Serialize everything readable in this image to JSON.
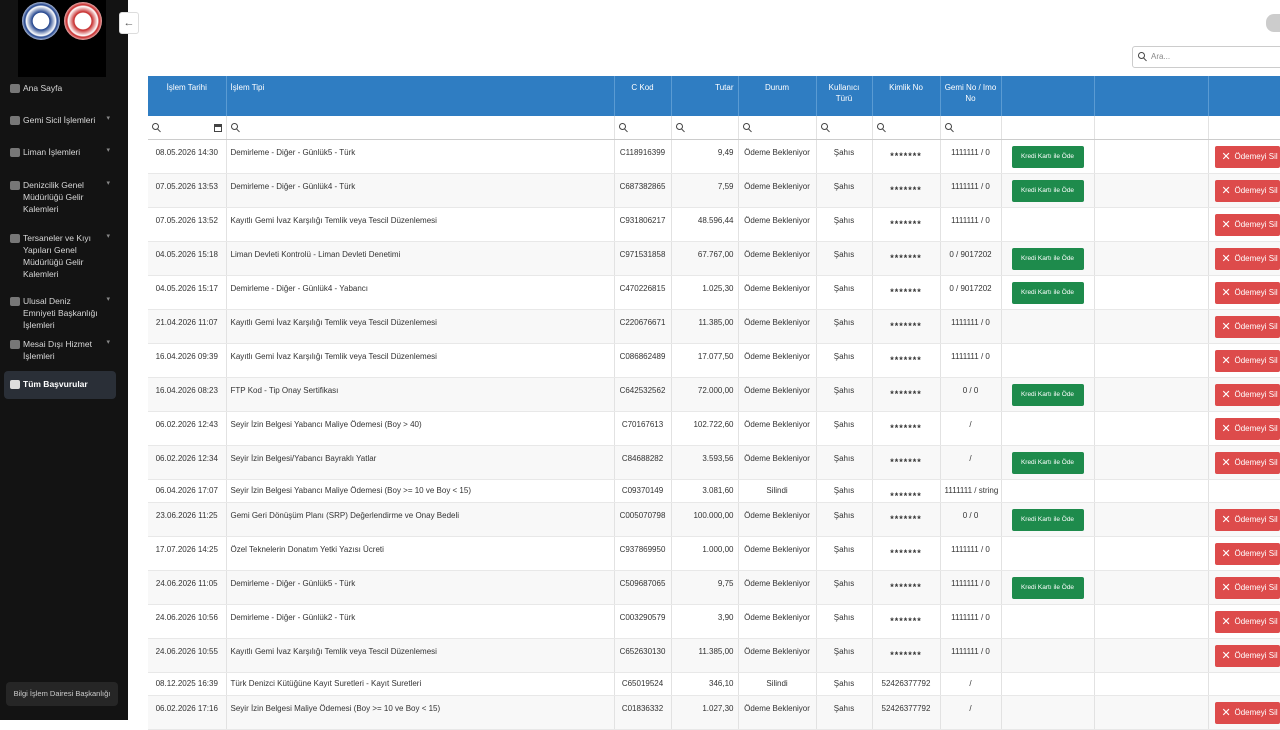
{
  "sidebar": {
    "menu": [
      {
        "label": "Ana Sayfa"
      },
      {
        "label": "Gemi Sicil İşlemleri"
      },
      {
        "label": "Liman İşlemleri"
      },
      {
        "label": "Denizcilik Genel Müdürlüğü Gelir Kalemleri"
      },
      {
        "label": "Tersaneler ve Kıyı Yapıları Genel Müdürlüğü Gelir Kalemleri"
      },
      {
        "label": "Ulusal Deniz Emniyeti Başkanlığı İşlemleri"
      },
      {
        "label": "Mesai Dışı Hizmet İşlemleri"
      },
      {
        "label": "Tüm Başvurular"
      }
    ],
    "footer": "Bilgi İşlem Dairesi Başkanlığı"
  },
  "search": {
    "placeholder": "Ara..."
  },
  "table": {
    "columns": [
      "İşlem Tarihi",
      "İşlem Tipi",
      "C Kod",
      "Tutar",
      "Durum",
      "Kullanıcı Türü",
      "Kimlik No",
      "Gemi No / Imo No"
    ],
    "actions": {
      "pay": "Kredi Kartı ile Öde",
      "delete": "Ödemeyi Sil"
    },
    "rows": [
      {
        "cells": [
          "08.05.2026 14:30",
          "Demirleme - Diğer - Günlük5 - Türk",
          "C118916399",
          "9,49",
          "Ödeme Bekleniyor",
          "Şahıs",
          "*******",
          "1111111 / 0"
        ],
        "pay": true,
        "delete": true
      },
      {
        "cells": [
          "07.05.2026 13:53",
          "Demirleme - Diğer - Günlük4 - Türk",
          "C687382865",
          "7,59",
          "Ödeme Bekleniyor",
          "Şahıs",
          "*******",
          "1111111 / 0"
        ],
        "pay": true,
        "delete": true
      },
      {
        "cells": [
          "07.05.2026 13:52",
          "Kayıtlı Gemi İvaz Karşılığı Temlik veya Tescil Düzenlemesi",
          "C931806217",
          "48.596,44",
          "Ödeme Bekleniyor",
          "Şahıs",
          "*******",
          "1111111 / 0"
        ],
        "pay": false,
        "delete": true
      },
      {
        "cells": [
          "04.05.2026 15:18",
          "Liman Devleti Kontrolü - Liman Devleti Denetimi",
          "C971531858",
          "67.767,00",
          "Ödeme Bekleniyor",
          "Şahıs",
          "*******",
          "0 / 9017202"
        ],
        "pay": true,
        "delete": true
      },
      {
        "cells": [
          "04.05.2026 15:17",
          "Demirleme - Diğer - Günlük4 - Yabancı",
          "C470226815",
          "1.025,30",
          "Ödeme Bekleniyor",
          "Şahıs",
          "*******",
          "0 / 9017202"
        ],
        "pay": true,
        "delete": true
      },
      {
        "cells": [
          "21.04.2026 11:07",
          "Kayıtlı Gemi İvaz Karşılığı Temlik veya Tescil Düzenlemesi",
          "C220676671",
          "11.385,00",
          "Ödeme Bekleniyor",
          "Şahıs",
          "*******",
          "1111111 / 0"
        ],
        "pay": false,
        "delete": true
      },
      {
        "cells": [
          "16.04.2026 09:39",
          "Kayıtlı Gemi İvaz Karşılığı Temlik veya Tescil Düzenlemesi",
          "C086862489",
          "17.077,50",
          "Ödeme Bekleniyor",
          "Şahıs",
          "*******",
          "1111111 / 0"
        ],
        "pay": false,
        "delete": true
      },
      {
        "cells": [
          "16.04.2026 08:23",
          "FTP Kod - Tip Onay Sertifikası",
          "C642532562",
          "72.000,00",
          "Ödeme Bekleniyor",
          "Şahıs",
          "*******",
          "0 / 0"
        ],
        "pay": true,
        "delete": true
      },
      {
        "cells": [
          "06.02.2026 12:43",
          "Seyir İzin Belgesi Yabancı Maliye Ödemesi (Boy > 40)",
          "C70167613",
          "102.722,60",
          "Ödeme Bekleniyor",
          "Şahıs",
          "*******",
          "/"
        ],
        "pay": false,
        "delete": true
      },
      {
        "cells": [
          "06.02.2026 12:34",
          "Seyir İzin Belgesi/Yabancı Bayraklı Yatlar",
          "C84688282",
          "3.593,56",
          "Ödeme Bekleniyor",
          "Şahıs",
          "*******",
          "/"
        ],
        "pay": true,
        "delete": true
      },
      {
        "cells": [
          "06.04.2026 17:07",
          "Seyir İzin Belgesi Yabancı Maliye Ödemesi (Boy >= 10 ve Boy < 15)",
          "C09370149",
          "3.081,60",
          "Silindi",
          "Şahıs",
          "*******",
          "1111111 / string"
        ],
        "pay": false,
        "delete": false
      },
      {
        "cells": [
          "23.06.2026 11:25",
          "Gemi Geri Dönüşüm Planı (SRP) Değerlendirme ve Onay Bedeli",
          "C005070798",
          "100.000,00",
          "Ödeme Bekleniyor",
          "Şahıs",
          "*******",
          "0 / 0"
        ],
        "pay": true,
        "delete": true
      },
      {
        "cells": [
          "17.07.2026 14:25",
          "Özel Teknelerin Donatım Yetki Yazısı Ücreti",
          "C937869950",
          "1.000,00",
          "Ödeme Bekleniyor",
          "Şahıs",
          "*******",
          "1111111 / 0"
        ],
        "pay": false,
        "delete": true
      },
      {
        "cells": [
          "24.06.2026 11:05",
          "Demirleme - Diğer - Günlük5 - Türk",
          "C509687065",
          "9,75",
          "Ödeme Bekleniyor",
          "Şahıs",
          "*******",
          "1111111 / 0"
        ],
        "pay": true,
        "delete": true
      },
      {
        "cells": [
          "24.06.2026 10:56",
          "Demirleme - Diğer - Günlük2 - Türk",
          "C003290579",
          "3,90",
          "Ödeme Bekleniyor",
          "Şahıs",
          "*******",
          "1111111 / 0"
        ],
        "pay": false,
        "delete": true
      },
      {
        "cells": [
          "24.06.2026 10:55",
          "Kayıtlı Gemi İvaz Karşılığı Temlik veya Tescil Düzenlemesi",
          "C652630130",
          "11.385,00",
          "Ödeme Bekleniyor",
          "Şahıs",
          "*******",
          "1111111 / 0"
        ],
        "pay": false,
        "delete": true
      },
      {
        "cells": [
          "08.12.2025 16:39",
          "Türk Denizci Kütüğüne Kayıt Suretleri - Kayıt Suretleri",
          "C65019524",
          "346,10",
          "Silindi",
          "Şahıs",
          "52426377792",
          "/"
        ],
        "pay": false,
        "delete": false
      },
      {
        "cells": [
          "06.02.2026 17:16",
          "Seyir İzin Belgesi Maliye Ödemesi (Boy >= 10 ve Boy < 15)",
          "C01836332",
          "1.027,30",
          "Ödeme Bekleniyor",
          "Şahıs",
          "52426377792",
          "/"
        ],
        "pay": false,
        "delete": true
      }
    ]
  }
}
